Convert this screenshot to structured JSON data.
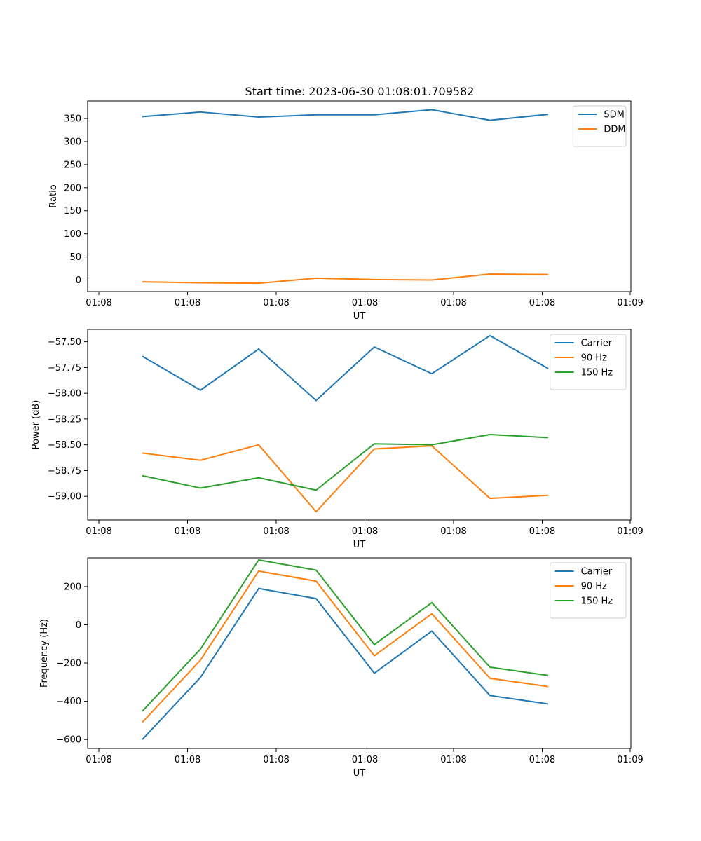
{
  "title": "Start time: 2023-06-30 01:08:01.709582",
  "chart_data": [
    {
      "type": "line",
      "title": "Start time: 2023-06-30 01:08:01.709582",
      "xlabel": "UT",
      "ylabel": "Ratio",
      "x_tick_labels": [
        "01:08",
        "01:08",
        "01:08",
        "01:08",
        "01:08",
        "01:08",
        "01:09"
      ],
      "y_ticks": [
        0,
        50,
        100,
        150,
        200,
        250,
        300,
        350
      ],
      "ylim": [
        -25,
        388
      ],
      "legend": "top-right",
      "grid": false,
      "series": [
        {
          "name": "SDM",
          "color": "#1f77b4",
          "values": [
            354,
            364,
            353,
            358,
            358,
            369,
            346,
            359
          ]
        },
        {
          "name": "DDM",
          "color": "#ff7f0e",
          "values": [
            -4,
            -6,
            -7,
            4,
            1,
            0,
            13,
            12
          ]
        }
      ]
    },
    {
      "type": "line",
      "title": "",
      "xlabel": "UT",
      "ylabel": "Power (dB)",
      "x_tick_labels": [
        "01:08",
        "01:08",
        "01:08",
        "01:08",
        "01:08",
        "01:08",
        "01:09"
      ],
      "y_ticks": [
        -59.0,
        -58.75,
        -58.5,
        -58.25,
        -58.0,
        -57.75,
        -57.5
      ],
      "y_tick_labels": [
        "−59.00",
        "−58.75",
        "−58.50",
        "−58.25",
        "−58.00",
        "−57.75",
        "−57.50"
      ],
      "ylim": [
        -59.23,
        -57.38
      ],
      "legend": "top-right",
      "grid": false,
      "series": [
        {
          "name": "Carrier",
          "color": "#1f77b4",
          "values": [
            -57.64,
            -57.97,
            -57.57,
            -58.07,
            -57.55,
            -57.81,
            -57.44,
            -57.76
          ]
        },
        {
          "name": "90 Hz",
          "color": "#ff7f0e",
          "values": [
            -58.58,
            -58.65,
            -58.5,
            -59.15,
            -58.54,
            -58.51,
            -59.02,
            -58.99
          ]
        },
        {
          "name": "150 Hz",
          "color": "#2ca02c",
          "values": [
            -58.8,
            -58.92,
            -58.82,
            -58.94,
            -58.49,
            -58.5,
            -58.4,
            -58.43
          ]
        }
      ]
    },
    {
      "type": "line",
      "title": "",
      "xlabel": "UT",
      "ylabel": "Frequency (Hz)",
      "x_tick_labels": [
        "01:08",
        "01:08",
        "01:08",
        "01:08",
        "01:08",
        "01:08",
        "01:09"
      ],
      "y_ticks": [
        -600,
        -400,
        -200,
        0,
        200
      ],
      "y_tick_labels": [
        "−600",
        "−400",
        "−200",
        "0",
        "200"
      ],
      "ylim": [
        -647,
        350
      ],
      "legend": "top-right",
      "grid": false,
      "series": [
        {
          "name": "Carrier",
          "color": "#1f77b4",
          "values": [
            -600,
            -275,
            190,
            137,
            -253,
            -33,
            -370,
            -414
          ]
        },
        {
          "name": "90 Hz",
          "color": "#ff7f0e",
          "values": [
            -510,
            -185,
            281,
            228,
            -162,
            58,
            -280,
            -323
          ]
        },
        {
          "name": "150 Hz",
          "color": "#2ca02c",
          "values": [
            -452,
            -127,
            339,
            286,
            -104,
            116,
            -222,
            -265
          ]
        }
      ]
    }
  ]
}
